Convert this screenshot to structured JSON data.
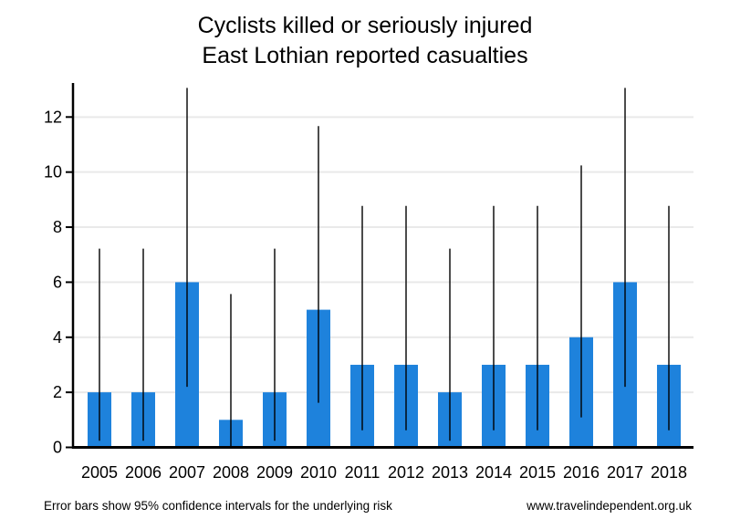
{
  "chart_data": {
    "type": "bar",
    "title": "Cyclists killed or seriously injured",
    "subtitle": "East Lothian reported casualties",
    "categories": [
      "2005",
      "2006",
      "2007",
      "2008",
      "2009",
      "2010",
      "2011",
      "2012",
      "2013",
      "2014",
      "2015",
      "2016",
      "2017",
      "2018"
    ],
    "values": [
      2,
      2,
      6,
      1,
      2,
      5,
      3,
      3,
      2,
      3,
      3,
      4,
      6,
      3
    ],
    "error_low": [
      0.24,
      0.24,
      2.2,
      0.03,
      0.24,
      1.62,
      0.62,
      0.62,
      0.24,
      0.62,
      0.62,
      1.09,
      2.2,
      0.62
    ],
    "error_high": [
      7.22,
      7.22,
      13.06,
      5.57,
      7.22,
      11.67,
      8.77,
      8.77,
      7.22,
      8.77,
      8.77,
      10.24,
      13.06,
      8.77
    ],
    "yticks": [
      0,
      2,
      4,
      6,
      8,
      10,
      12
    ],
    "ylim": [
      0,
      13.17
    ],
    "xlabel": "",
    "ylabel": "",
    "grid": "horizontal",
    "legend": "none",
    "colors": {
      "bar": "#1e82dc",
      "grid": "#e9e9e9",
      "axis": "#000000",
      "error_bar": "#000000",
      "text": "#000000",
      "background": "#ffffff"
    }
  },
  "footer": {
    "note": "Error bars show 95% confidence intervals for the underlying risk",
    "website": "www.travelindependent.org.uk"
  }
}
